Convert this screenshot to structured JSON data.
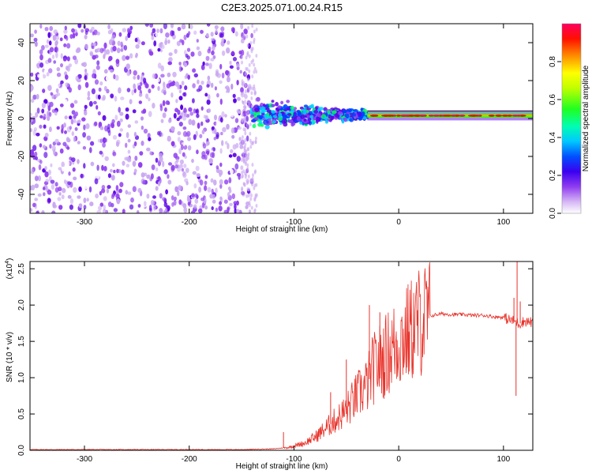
{
  "title": "C2E3.2025.071.00.24.R15",
  "chart_data": [
    {
      "type": "heatmap",
      "xlabel": "Height of straight line (km)",
      "ylabel": "Frequency (Hz)",
      "xlim": [
        -352,
        128
      ],
      "ylim": [
        -50,
        50
      ],
      "xticks": [
        -300,
        -200,
        -100,
        0,
        100
      ],
      "yticks": [
        -40,
        -20,
        0,
        20,
        40
      ],
      "colorbar": {
        "label": "Normalized spectral amplitude",
        "range": [
          0,
          1
        ],
        "ticks": [
          "0.0",
          "0.2",
          "0.4",
          "0.6",
          "0.8"
        ]
      },
      "regions": [
        {
          "x": [
            -352,
            -140
          ],
          "freq_range": [
            -50,
            50
          ],
          "amplitude": "0.05-0.25",
          "pattern": "scattered noise"
        },
        {
          "x": [
            -140,
            -30
          ],
          "freq_center": 2,
          "freq_spread": 10,
          "amplitude": "0.2-0.45",
          "pattern": "clustered signal"
        },
        {
          "x": [
            -30,
            128
          ],
          "freq_center": 1.5,
          "freq_spread": 1,
          "amplitude": "0.6-1.0",
          "pattern": "narrow line"
        }
      ],
      "colors": [
        "#ffffff",
        "#c9a7f2",
        "#8f3df0",
        "#5a00e8",
        "#0040ff",
        "#00d0ff",
        "#00ff60",
        "#80ff00",
        "#ffff00",
        "#ff8000",
        "#ff0000",
        "#ff0060"
      ]
    },
    {
      "type": "line",
      "xlabel": "Height of straight line (km)",
      "ylabel": "SNR (10 * v/v)",
      "multiplier": "(x10",
      "multiplier_exp": "4",
      "xlim": [
        -352,
        128
      ],
      "ylim": [
        0,
        2.6
      ],
      "xticks": [
        -300,
        -200,
        -100,
        0,
        100
      ],
      "yticks": [
        "0.0",
        "0.5",
        "1.0",
        "1.5",
        "2.0",
        "2.5"
      ],
      "series": [
        {
          "color": "#e8322a",
          "x": [
            -352,
            -150,
            -120,
            -105,
            -100,
            -90,
            -80,
            -70,
            -60,
            -50,
            -40,
            -30,
            -25,
            -20,
            -15,
            -10,
            0,
            10,
            20,
            30,
            40,
            50,
            60,
            70,
            80,
            90,
            100,
            105,
            110,
            115,
            120,
            128
          ],
          "y": [
            0.01,
            0.01,
            0.02,
            0.04,
            0.06,
            0.1,
            0.18,
            0.3,
            0.42,
            0.55,
            0.75,
            0.9,
            1.1,
            1.2,
            1.25,
            1.35,
            1.5,
            1.62,
            1.78,
            1.85,
            1.88,
            1.87,
            1.87,
            1.86,
            1.86,
            1.84,
            1.83,
            1.8,
            1.78,
            1.74,
            1.78,
            1.76
          ],
          "spikes": [
            [
              -28,
              2.0
            ],
            [
              -18,
              1.9
            ],
            [
              -50,
              1.25
            ],
            [
              -65,
              0.8
            ],
            [
              -110,
              0.25
            ],
            [
              110,
              2.1
            ],
            [
              113,
              2.6
            ],
            [
              112,
              0.75
            ],
            [
              116,
              2.05
            ]
          ]
        }
      ]
    }
  ]
}
